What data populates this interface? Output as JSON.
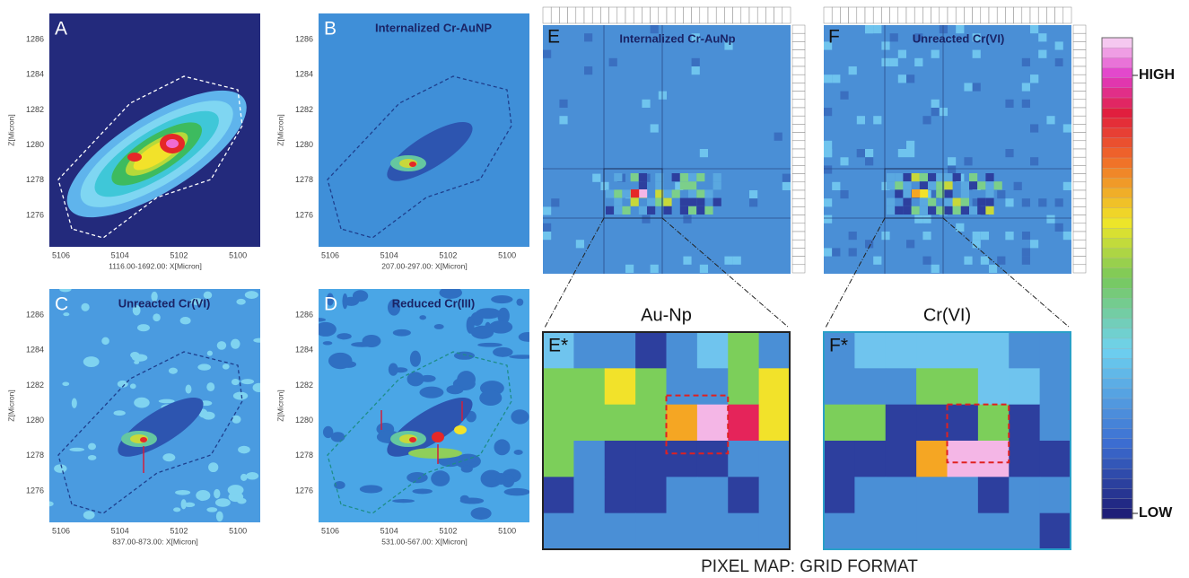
{
  "panels": [
    {
      "letter": "A",
      "x_label": "1116.00-1692.00: X[Micron]"
    },
    {
      "letter": "B",
      "title": "Internalized Cr-AuNP",
      "x_label": "207.00-297.00: X[Micron]"
    },
    {
      "letter": "C",
      "title": "Unreacted Cr(VI)",
      "x_label": "837.00-873.00: X[Micron]"
    },
    {
      "letter": "D",
      "title": "Reduced Cr(III)",
      "x_label": "531.00-567.00: X[Micron]"
    },
    {
      "letter": "E",
      "title": "Internalized Cr-AuNp"
    },
    {
      "letter": "F",
      "title": "Unreacted Cr(VI)"
    },
    {
      "letter": "E*",
      "title": "Au-Np"
    },
    {
      "letter": "F*",
      "title": "Cr(VI)"
    }
  ],
  "y_label": "Z[Micron]",
  "x_ticks": [
    5106,
    5104,
    5102,
    5100
  ],
  "y_ticks": [
    1286,
    1284,
    1282,
    1280,
    1278,
    1276
  ],
  "color_scale": {
    "high": "HIGH",
    "low": "LOW"
  },
  "caption": "PIXEL MAP: GRID FORMAT"
}
